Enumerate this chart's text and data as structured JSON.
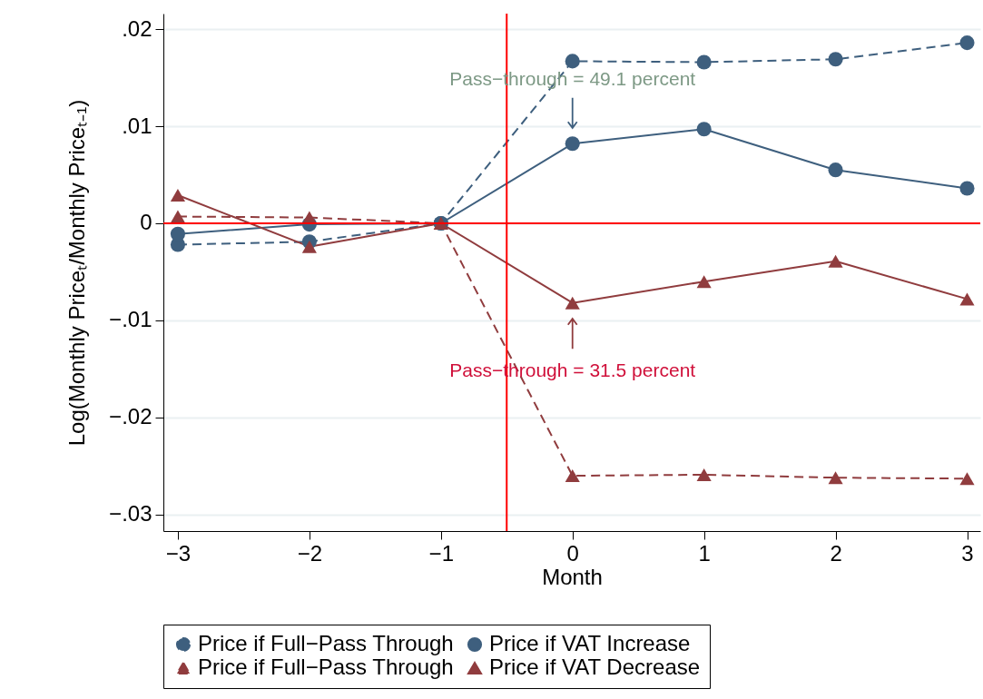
{
  "chart_data": {
    "type": "line",
    "xlabel": "Month",
    "ylabel": "Log(Monthly Priceₜ/Monthly Priceₜ₋₁)",
    "x": [
      -3,
      -2,
      -1,
      0,
      1,
      2,
      3
    ],
    "series": [
      {
        "name": "Price if Full−Pass Through",
        "color": "#3e5f7e",
        "marker": "circle",
        "line_style": "dashed",
        "values": [
          -0.0022,
          -0.0019,
          0,
          0.0167,
          0.0166,
          0.0169,
          0.0186
        ]
      },
      {
        "name": "Price if VAT Increase",
        "color": "#3e5f7e",
        "marker": "circle",
        "line_style": "solid",
        "values": [
          -0.0011,
          -0.0001,
          0,
          0.0082,
          0.0097,
          0.0055,
          0.0036
        ]
      },
      {
        "name": "Price if Full−Pass Through",
        "color": "#903c3e",
        "marker": "triangle",
        "line_style": "dashed",
        "values": [
          0.0007,
          0.0006,
          0,
          -0.026,
          -0.0259,
          -0.0262,
          -0.0263
        ]
      },
      {
        "name": "Price if VAT Decrease",
        "color": "#903c3e",
        "marker": "triangle",
        "line_style": "solid",
        "values": [
          0.0029,
          -0.0024,
          0,
          -0.0082,
          -0.006,
          -0.0039,
          -0.0078
        ]
      }
    ],
    "xlim": [
      -3.11,
      3.1
    ],
    "ylim": [
      -0.0317,
      0.0216
    ],
    "xticks": [
      {
        "value": -3,
        "label": "−3"
      },
      {
        "value": -2,
        "label": "−2"
      },
      {
        "value": -1,
        "label": "−1"
      },
      0,
      1,
      2,
      3
    ],
    "yticks": [
      {
        "value": -0.03,
        "label": "−.03"
      },
      {
        "value": -0.02,
        "label": "−.02"
      },
      {
        "value": -0.01,
        "label": "−.01"
      },
      0,
      {
        "value": 0.01,
        "label": ".01"
      },
      {
        "value": 0.02,
        "label": ".02"
      }
    ],
    "grid": "y",
    "legend": "bottom",
    "ref_lines": [
      {
        "axis": "x",
        "value": -0.5,
        "color": "#ff0000"
      },
      {
        "axis": "y",
        "value": 0,
        "color": "#ff0000"
      }
    ],
    "annotations": [
      {
        "text": "Pass−through = 49.1 percent",
        "x": 0,
        "y": 0.0082
      },
      {
        "text": "Pass−through = 31.5 percent",
        "x": 0,
        "y": -0.0082
      }
    ]
  }
}
